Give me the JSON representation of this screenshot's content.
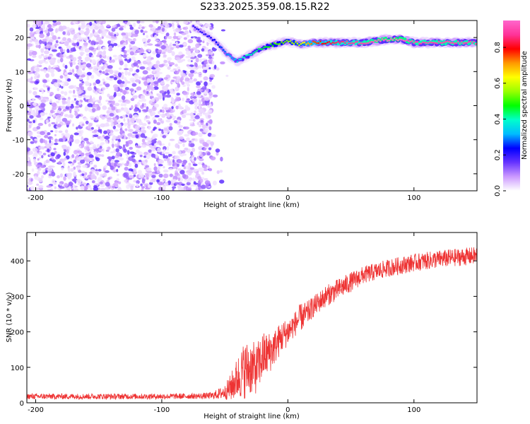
{
  "title": "S233.2025.359.08.15.R22",
  "chart_data": [
    {
      "type": "heatmap",
      "xlabel": "Height of straight line (km)",
      "ylabel": "Frequency (Hz)",
      "xlim": [
        -207,
        150
      ],
      "ylim": [
        -25,
        25
      ],
      "xticks": [
        -200,
        -100,
        0,
        100
      ],
      "yticks": [
        -20,
        -10,
        0,
        10,
        20
      ],
      "colorbar": {
        "label": "Normalized spectral amplitude",
        "range": [
          0,
          0.95
        ],
        "ticks": [
          0.0,
          0.2,
          0.4,
          0.6,
          0.8
        ],
        "colors": [
          "#ffffff",
          "#cc99ff",
          "#6633ff",
          "#0000ff",
          "#00bbff",
          "#00ffcc",
          "#00ff00",
          "#99ff00",
          "#ffff00",
          "#ff9900",
          "#ff0000",
          "#ff3399",
          "#ff66cc"
        ]
      },
      "noise_region": {
        "x": [
          -207,
          -60
        ],
        "freq": [
          -25,
          25
        ],
        "amplitude": [
          0.0,
          0.15
        ]
      },
      "ridge": {
        "x": [
          -75,
          -65,
          -55,
          -48,
          -40,
          -35,
          -30,
          -20,
          -10,
          0,
          10,
          20,
          40,
          60,
          80,
          90,
          100,
          120,
          150
        ],
        "freq": [
          23,
          21,
          18,
          15,
          13,
          14,
          15,
          17,
          18,
          19,
          18,
          18.5,
          18.5,
          18.5,
          19.5,
          19.5,
          18.5,
          18.5,
          18.5
        ],
        "amplitude": [
          0.2,
          0.2,
          0.25,
          0.3,
          0.35,
          0.4,
          0.4,
          0.45,
          0.5,
          0.55,
          0.6,
          0.75,
          0.85,
          0.9,
          0.95,
          0.95,
          0.9,
          0.9,
          0.9
        ]
      }
    },
    {
      "type": "line",
      "xlabel": "Height of straight line (km)",
      "ylabel": "SNR (10 * v/v)",
      "xlim": [
        -207,
        150
      ],
      "ylim": [
        0,
        480
      ],
      "xticks": [
        -200,
        -100,
        0,
        100
      ],
      "yticks": [
        0,
        100,
        200,
        300,
        400
      ],
      "color": "#ee3333",
      "x": [
        -207,
        -150,
        -100,
        -70,
        -60,
        -50,
        -45,
        -40,
        -35,
        -30,
        -25,
        -20,
        -15,
        -10,
        -5,
        0,
        5,
        10,
        15,
        20,
        30,
        40,
        50,
        60,
        80,
        100,
        120,
        150
      ],
      "mean": [
        18,
        18,
        18,
        19,
        20,
        30,
        45,
        70,
        90,
        100,
        95,
        130,
        140,
        160,
        185,
        200,
        220,
        240,
        250,
        270,
        300,
        320,
        340,
        360,
        380,
        395,
        405,
        415
      ],
      "noise": [
        8,
        8,
        8,
        8,
        10,
        20,
        40,
        60,
        80,
        80,
        70,
        70,
        60,
        50,
        45,
        40,
        35,
        40,
        35,
        30,
        30,
        30,
        28,
        25,
        25,
        25,
        25,
        25
      ]
    }
  ]
}
